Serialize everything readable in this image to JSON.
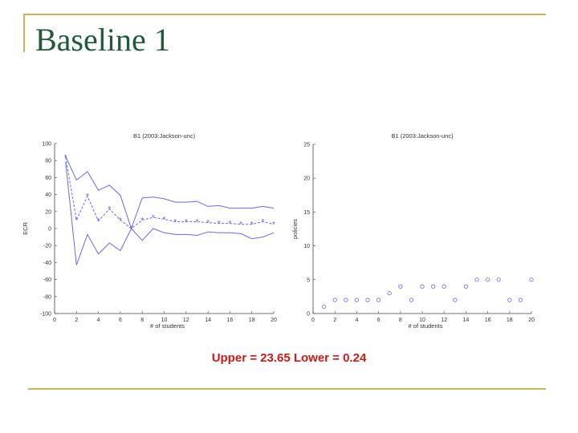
{
  "slide": {
    "title": "Baseline 1",
    "caption": "Upper = 23.65  Lower = 0.24",
    "colors": {
      "title": "#1f5a3a",
      "rule": "#c9b458",
      "caption": "#d01818",
      "series": "#6a6ae0"
    }
  },
  "chart_data": [
    {
      "type": "line",
      "title": "B1 (2003:Jackson-unc)",
      "xlabel": "# of students",
      "ylabel": "ECR",
      "xlim": [
        0,
        20
      ],
      "ylim": [
        -100,
        100
      ],
      "xticks": [
        0,
        2,
        4,
        6,
        8,
        10,
        12,
        14,
        16,
        18,
        20
      ],
      "yticks": [
        100,
        80,
        60,
        40,
        20,
        0,
        -20,
        -40,
        -60,
        -80,
        -100
      ],
      "x": [
        1,
        2,
        3,
        4,
        5,
        6,
        7,
        8,
        9,
        10,
        11,
        12,
        13,
        14,
        15,
        16,
        17,
        18,
        19,
        20
      ],
      "series": [
        {
          "style": "upper",
          "values": [
            85,
            57,
            67,
            45,
            51,
            39,
            0,
            36,
            37,
            35,
            31,
            31,
            32,
            26,
            27,
            24,
            24,
            24,
            26,
            24
          ]
        },
        {
          "style": "mean",
          "values": [
            84,
            10,
            38,
            9,
            23,
            10,
            0,
            10,
            13,
            11,
            8,
            8,
            8,
            7,
            6,
            6,
            5,
            5,
            8,
            5
          ]
        },
        {
          "style": "lower",
          "values": [
            78,
            -43,
            -7,
            -30,
            -17,
            -26,
            0,
            -14,
            0,
            -5,
            -7,
            -7,
            -8,
            -4,
            -5,
            -5,
            -6,
            -12,
            -10,
            -5
          ]
        }
      ],
      "grid": false
    },
    {
      "type": "scatter",
      "title": "B1 (2003:Jackson-unc)",
      "xlabel": "# of students",
      "ylabel": "policies",
      "xlim": [
        0,
        20
      ],
      "ylim": [
        0,
        25
      ],
      "xticks": [
        0,
        2,
        4,
        6,
        8,
        10,
        12,
        14,
        16,
        18,
        20
      ],
      "yticks": [
        25,
        20,
        15,
        10,
        5,
        0
      ],
      "x": [
        1,
        2,
        3,
        4,
        5,
        6,
        7,
        8,
        9,
        10,
        11,
        12,
        13,
        14,
        15,
        16,
        17,
        18,
        19,
        20
      ],
      "values": [
        1,
        2,
        2,
        2,
        2,
        2,
        3,
        4,
        2,
        4,
        4,
        4,
        2,
        4,
        5,
        5,
        5,
        2,
        2,
        5
      ],
      "grid": false
    }
  ]
}
